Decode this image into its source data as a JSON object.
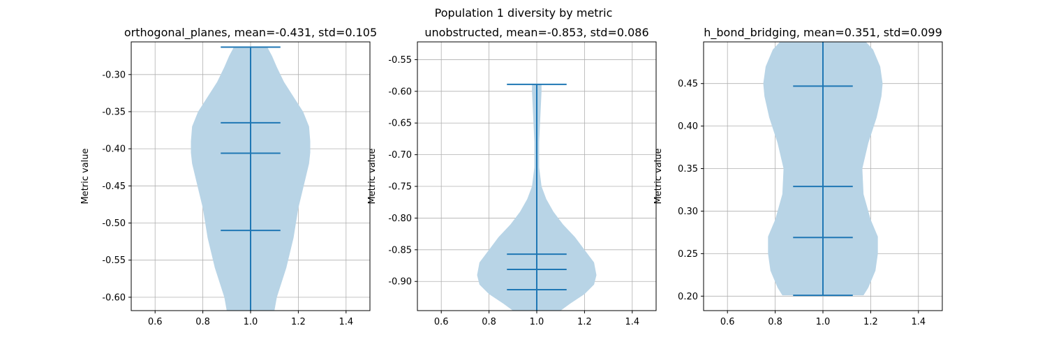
{
  "figure": {
    "suptitle": "Population 1 diversity by metric"
  },
  "chart_data": [
    {
      "type": "violin",
      "title": "orthogonal_planes, mean=-0.431, std=0.105",
      "xlabel": "",
      "ylabel": "Metric value",
      "xlim": [
        0.5,
        1.5
      ],
      "ylim": [
        -0.618,
        -0.256
      ],
      "xticks": [
        "0.6",
        "0.8",
        "1.0",
        "1.2",
        "1.4"
      ],
      "yticks": [
        "-0.30",
        "-0.35",
        "-0.40",
        "-0.45",
        "-0.50",
        "-0.55",
        "-0.60"
      ],
      "grid": true,
      "color": "#1f77b4",
      "fill_color": "#b8d4e6",
      "position": 1.0,
      "extrema": {
        "min": -0.618,
        "max": -0.263
      },
      "quantiles": [
        -0.365,
        -0.406,
        -0.51
      ],
      "density": [
        {
          "y": -0.263,
          "w": 0.07
        },
        {
          "y": -0.275,
          "w": 0.09
        },
        {
          "y": -0.29,
          "w": 0.11
        },
        {
          "y": -0.31,
          "w": 0.14
        },
        {
          "y": -0.33,
          "w": 0.18
        },
        {
          "y": -0.35,
          "w": 0.22
        },
        {
          "y": -0.37,
          "w": 0.245
        },
        {
          "y": -0.39,
          "w": 0.25
        },
        {
          "y": -0.405,
          "w": 0.25
        },
        {
          "y": -0.42,
          "w": 0.245
        },
        {
          "y": -0.44,
          "w": 0.23
        },
        {
          "y": -0.46,
          "w": 0.215
        },
        {
          "y": -0.48,
          "w": 0.2
        },
        {
          "y": -0.5,
          "w": 0.19
        },
        {
          "y": -0.52,
          "w": 0.18
        },
        {
          "y": -0.54,
          "w": 0.165
        },
        {
          "y": -0.56,
          "w": 0.15
        },
        {
          "y": -0.58,
          "w": 0.13
        },
        {
          "y": -0.6,
          "w": 0.11
        },
        {
          "y": -0.618,
          "w": 0.1
        }
      ]
    },
    {
      "type": "violin",
      "title": "unobstructed, mean=-0.853, std=0.086",
      "xlabel": "",
      "ylabel": "Metric value",
      "xlim": [
        0.5,
        1.5
      ],
      "ylim": [
        -0.946,
        -0.522
      ],
      "xticks": [
        "0.6",
        "0.8",
        "1.0",
        "1.2",
        "1.4"
      ],
      "yticks": [
        "-0.55",
        "-0.60",
        "-0.65",
        "-0.70",
        "-0.75",
        "-0.80",
        "-0.85",
        "-0.90"
      ],
      "grid": true,
      "color": "#1f77b4",
      "fill_color": "#b8d4e6",
      "position": 1.0,
      "extrema": {
        "min": -0.946,
        "max": -0.589
      },
      "quantiles": [
        -0.857,
        -0.881,
        -0.913
      ],
      "density": [
        {
          "y": -0.589,
          "w": 0.02
        },
        {
          "y": -0.6,
          "w": 0.02
        },
        {
          "y": -0.64,
          "w": 0.015
        },
        {
          "y": -0.68,
          "w": 0.01
        },
        {
          "y": -0.72,
          "w": 0.01
        },
        {
          "y": -0.75,
          "w": 0.02
        },
        {
          "y": -0.77,
          "w": 0.04
        },
        {
          "y": -0.79,
          "w": 0.07
        },
        {
          "y": -0.81,
          "w": 0.11
        },
        {
          "y": -0.83,
          "w": 0.16
        },
        {
          "y": -0.85,
          "w": 0.2
        },
        {
          "y": -0.87,
          "w": 0.24
        },
        {
          "y": -0.89,
          "w": 0.25
        },
        {
          "y": -0.905,
          "w": 0.24
        },
        {
          "y": -0.92,
          "w": 0.2
        },
        {
          "y": -0.935,
          "w": 0.14
        },
        {
          "y": -0.946,
          "w": 0.1
        }
      ]
    },
    {
      "type": "violin",
      "title": "h_bond_bridging, mean=0.351, std=0.099",
      "xlabel": "",
      "ylabel": "Metric value",
      "xlim": [
        0.5,
        1.5
      ],
      "ylim": [
        0.183,
        0.499
      ],
      "xticks": [
        "0.6",
        "0.8",
        "1.0",
        "1.2",
        "1.4"
      ],
      "yticks": [
        "0.45",
        "0.40",
        "0.35",
        "0.30",
        "0.25",
        "0.20"
      ],
      "grid": true,
      "color": "#1f77b4",
      "fill_color": "#b8d4e6",
      "position": 1.0,
      "extrema": {
        "min": 0.201,
        "max": 0.499
      },
      "quantiles": [
        0.447,
        0.329,
        0.269
      ],
      "density": [
        {
          "y": 0.499,
          "w": 0.18
        },
        {
          "y": 0.49,
          "w": 0.21
        },
        {
          "y": 0.47,
          "w": 0.24
        },
        {
          "y": 0.45,
          "w": 0.25
        },
        {
          "y": 0.435,
          "w": 0.245
        },
        {
          "y": 0.41,
          "w": 0.225
        },
        {
          "y": 0.38,
          "w": 0.19
        },
        {
          "y": 0.35,
          "w": 0.165
        },
        {
          "y": 0.32,
          "w": 0.17
        },
        {
          "y": 0.29,
          "w": 0.2
        },
        {
          "y": 0.27,
          "w": 0.23
        },
        {
          "y": 0.25,
          "w": 0.23
        },
        {
          "y": 0.23,
          "w": 0.22
        },
        {
          "y": 0.21,
          "w": 0.19
        },
        {
          "y": 0.201,
          "w": 0.17
        }
      ]
    }
  ]
}
